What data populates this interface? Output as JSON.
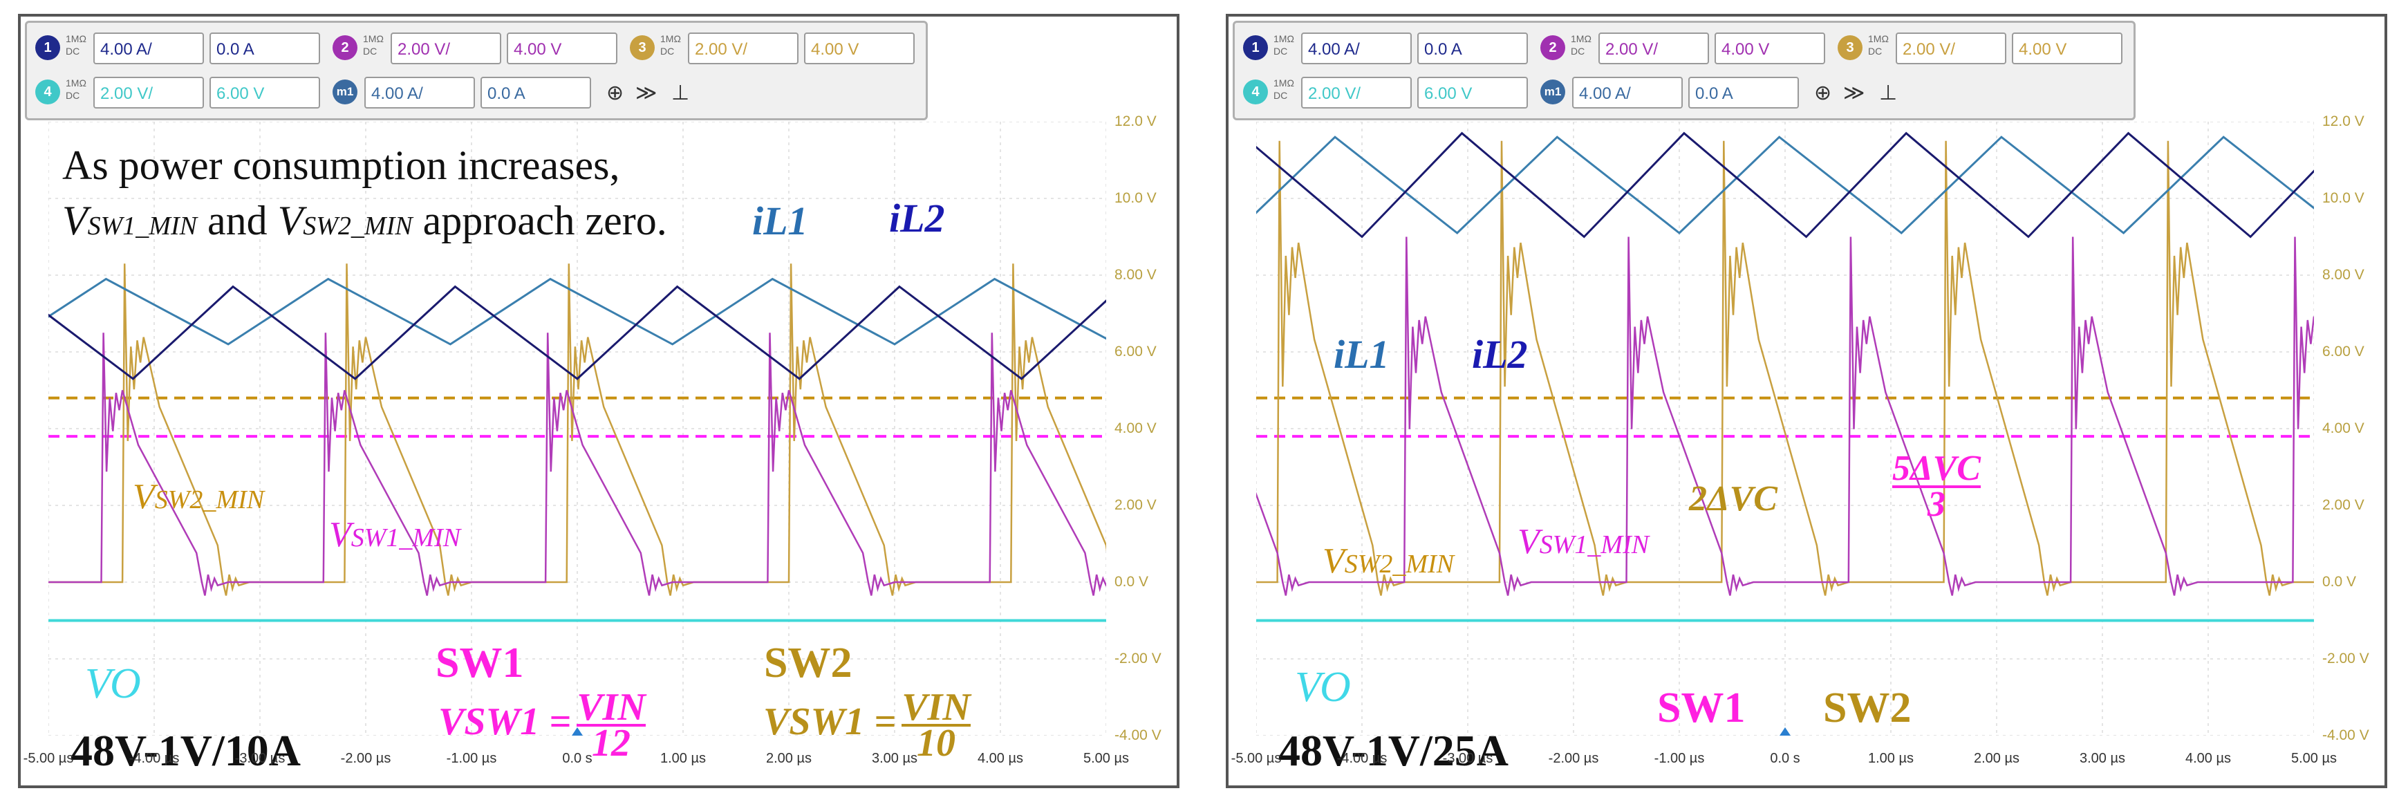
{
  "panels": [
    {
      "id": "left",
      "channels": [
        {
          "num": "1",
          "coupling": "1MΩ DC",
          "scale": "4.00 A/",
          "offset": "0.0 A",
          "color": "#1f2a8c"
        },
        {
          "num": "2",
          "coupling": "1MΩ DC",
          "scale": "2.00 V/",
          "offset": "4.00 V",
          "color": "#a030b0"
        },
        {
          "num": "3",
          "coupling": "1MΩ DC",
          "scale": "2.00 V/",
          "offset": "4.00 V",
          "color": "#c8a040"
        },
        {
          "num": "4",
          "coupling": "1MΩ DC",
          "scale": "2.00 V/",
          "offset": "6.00 V",
          "color": "#40c8c8"
        },
        {
          "num": "m1",
          "coupling": "",
          "scale": "4.00 A/",
          "offset": "0.0 A",
          "color": "#3a6aa0"
        }
      ],
      "note_line1": "As power consumption increases,",
      "note_v1": "V",
      "note_sub1": "SW1_MIN",
      "note_and": " and ",
      "note_v2": "V",
      "note_sub2": "SW2_MIN",
      "note_end": " approach zero.",
      "labels": {
        "il1": "iL1",
        "il2": "iL2",
        "vsw2min_v": "V",
        "vsw2min_sub": "SW2_MIN",
        "vsw1min_v": "V",
        "vsw1min_sub": "SW1_MIN",
        "sw1": "SW1",
        "sw2": "SW2",
        "vo": "VO",
        "eq1_lhs": "VSW1 =",
        "eq1_num": "VIN",
        "eq1_den": "12",
        "eq2_lhs": "VSW1 =",
        "eq2_num": "VIN",
        "eq2_den": "10",
        "condition": "48V-1V/10A"
      }
    },
    {
      "id": "right",
      "channels": [
        {
          "num": "1",
          "coupling": "1MΩ DC",
          "scale": "4.00 A/",
          "offset": "0.0 A",
          "color": "#1f2a8c"
        },
        {
          "num": "2",
          "coupling": "1MΩ DC",
          "scale": "2.00 V/",
          "offset": "4.00 V",
          "color": "#a030b0"
        },
        {
          "num": "3",
          "coupling": "1MΩ DC",
          "scale": "2.00 V/",
          "offset": "4.00 V",
          "color": "#c8a040"
        },
        {
          "num": "4",
          "coupling": "1MΩ DC",
          "scale": "2.00 V/",
          "offset": "6.00 V",
          "color": "#40c8c8"
        },
        {
          "num": "m1",
          "coupling": "",
          "scale": "4.00 A/",
          "offset": "0.0 A",
          "color": "#3a6aa0"
        }
      ],
      "labels": {
        "il1": "iL1",
        "il2": "iL2",
        "vsw2min_v": "V",
        "vsw2min_sub": "SW2_MIN",
        "vsw1min_v": "V",
        "vsw1min_sub": "SW1_MIN",
        "dvc2": "2ΔVC",
        "dvc5_num": "5ΔVC",
        "dvc5_den": "3",
        "sw1": "SW1",
        "sw2": "SW2",
        "vo": "VO",
        "condition": "48V-1V/25A"
      }
    }
  ],
  "chart_data": [
    {
      "type": "line",
      "panel": "left",
      "x_ticks": [
        "-5.00 µs",
        "-4.00 µs",
        "-3.00 µs",
        "-2.00 µs",
        "-1.00 µs",
        "0.0 s",
        "1.00 µs",
        "2.00 µs",
        "3.00 µs",
        "4.00 µs",
        "5.00 µs"
      ],
      "y_ticks": [
        "12.0 V",
        "10.0 V",
        "8.00 V",
        "6.00 V",
        "4.00 V",
        "2.00 V",
        "0.0 V",
        "-2.00 V",
        "-4.00 V"
      ],
      "xlim": [
        -5,
        5
      ],
      "ylim": [
        -4,
        12
      ],
      "switching_period_us": 2.1,
      "series": [
        {
          "name": "iL1",
          "color": "#3a7fae",
          "valley": 6.2,
          "peak": 7.9,
          "phase_us": -3.3
        },
        {
          "name": "iL2",
          "color": "#1a1a6e",
          "valley": 5.3,
          "peak": 7.7,
          "phase_us": -4.2
        },
        {
          "name": "SW1",
          "color": "#b03cb8",
          "ringing_peak": 6.5,
          "phase_us": -2.4
        },
        {
          "name": "SW2",
          "color": "#c8a040",
          "ringing_peak": 8.3,
          "phase_us": -4.3
        },
        {
          "name": "VO",
          "color": "#40d8d8",
          "level": -1.0
        }
      ],
      "reference_lines": [
        {
          "name": "VSW2 level",
          "color": "#c8900f",
          "value": 4.8
        },
        {
          "name": "VSW1 level",
          "color": "#ff20ff",
          "value": 3.8
        }
      ]
    },
    {
      "type": "line",
      "panel": "right",
      "x_ticks": [
        "-5.00 µs",
        "-4.00 µs",
        "-3.00 µs",
        "-2.00 µs",
        "-1.00 µs",
        "0.0 s",
        "1.00 µs",
        "2.00 µs",
        "3.00 µs",
        "4.00 µs",
        "5.00 µs"
      ],
      "y_ticks": [
        "12.0 V",
        "10.0 V",
        "8.00 V",
        "6.00 V",
        "4.00 V",
        "2.00 V",
        "0.0 V",
        "-2.00 V",
        "-4.00 V"
      ],
      "xlim": [
        -5,
        5
      ],
      "ylim": [
        -4,
        12
      ],
      "switching_period_us": 2.1,
      "series": [
        {
          "name": "iL1",
          "color": "#3a7fae",
          "valley": 9.1,
          "peak": 11.6,
          "phase_us": -3.1
        },
        {
          "name": "iL2",
          "color": "#1a1a6e",
          "valley": 9.0,
          "peak": 11.7,
          "phase_us": -4.0
        },
        {
          "name": "SW1",
          "color": "#b03cb8",
          "ringing_peak": 9.0,
          "phase_us": -3.6
        },
        {
          "name": "SW2",
          "color": "#c8a040",
          "ringing_peak": 11.5,
          "phase_us": -4.8
        },
        {
          "name": "VO",
          "color": "#40d8d8",
          "level": -1.0
        }
      ],
      "reference_lines": [
        {
          "name": "VSW2 level",
          "color": "#c8900f",
          "value": 4.8
        },
        {
          "name": "VSW1 level",
          "color": "#ff20ff",
          "value": 3.8
        }
      ]
    }
  ]
}
